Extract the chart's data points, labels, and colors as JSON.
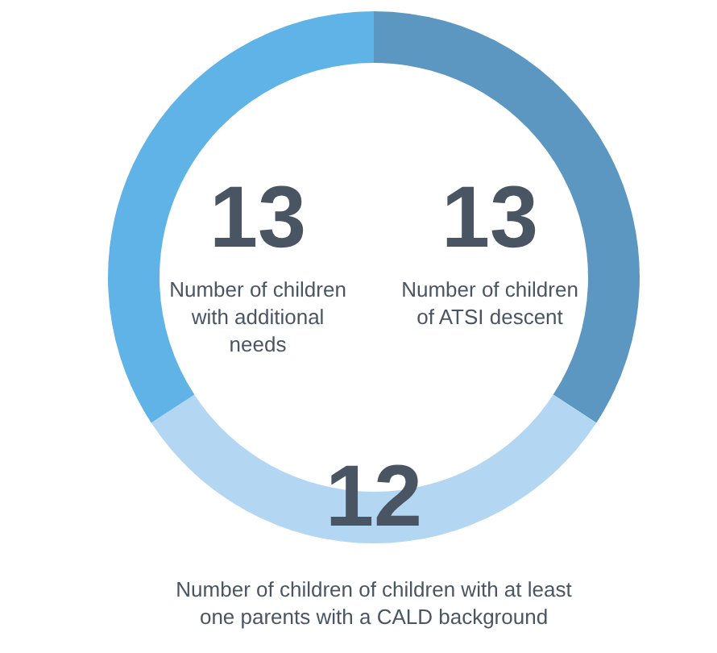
{
  "chart_data": {
    "type": "donut",
    "categories": [
      "Number of children of ATSI descent",
      "Number of children of children with at least one parents with a CALD background",
      "Number of children with additional needs"
    ],
    "values": [
      13,
      12,
      13
    ],
    "colors": [
      "#5b97c1",
      "#b3d6f2",
      "#5fb3e6"
    ],
    "data_labels": true
  }
}
